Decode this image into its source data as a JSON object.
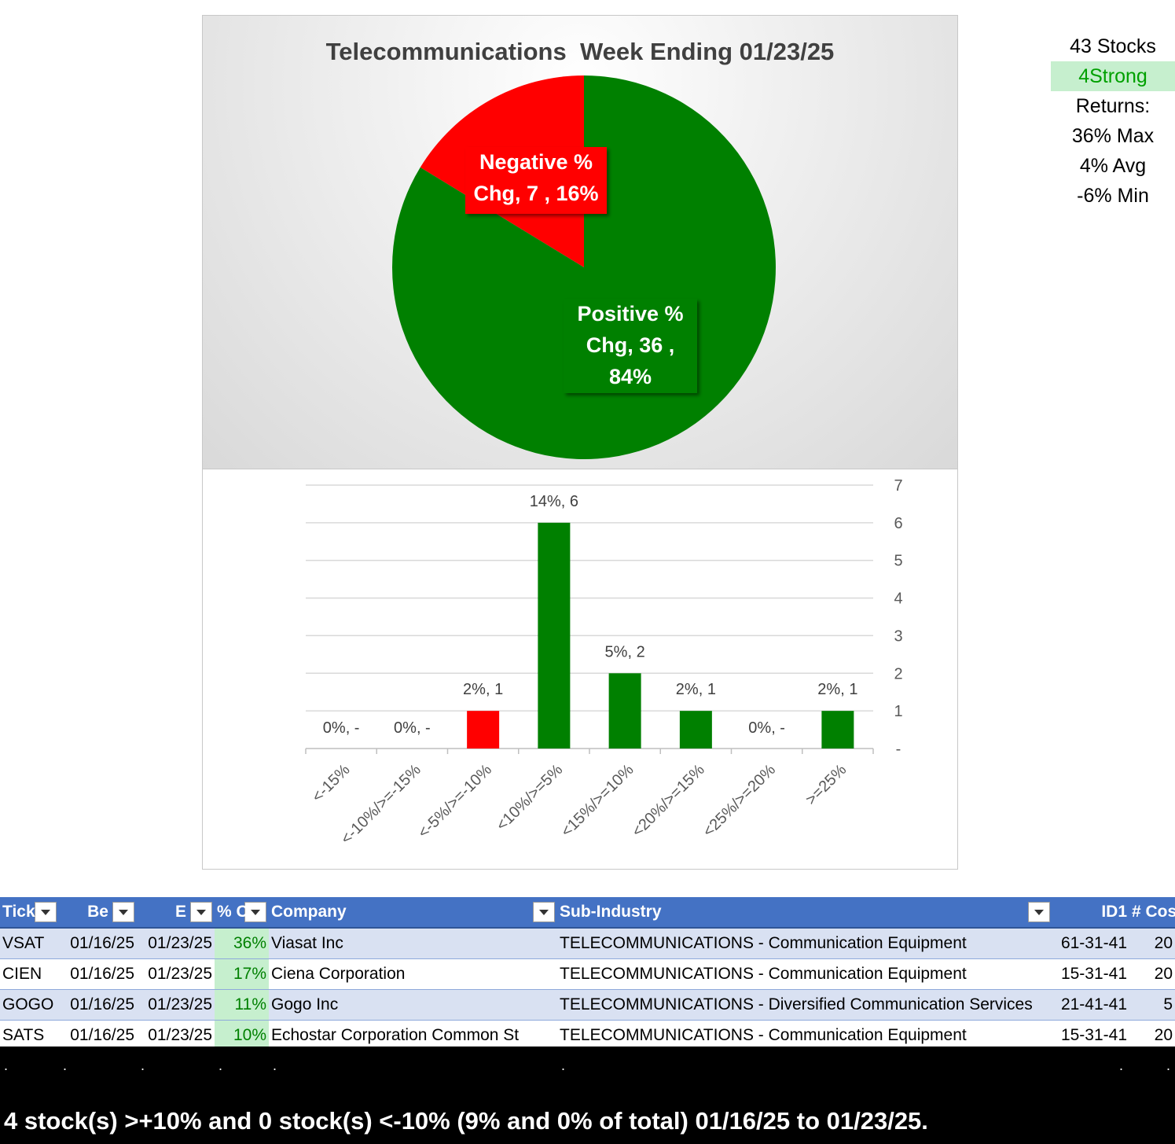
{
  "chart_data": [
    {
      "type": "pie",
      "title": "Telecommunications  Week Ending 01/23/25",
      "slices": [
        {
          "name": "Negative % Chg",
          "value": 7,
          "percent": "16%",
          "color": "#ff0000",
          "label_lines": [
            "Negative %",
            "Chg,  7 , 16%"
          ]
        },
        {
          "name": "Positive % Chg",
          "value": 36,
          "percent": "84%",
          "color": "#008000",
          "label_lines": [
            "Positive %",
            "Chg,  36 ,",
            "84%"
          ]
        }
      ]
    },
    {
      "type": "bar",
      "categories": [
        "<-15%",
        "<-10%/>=-15%",
        "<-5%/>=-10%",
        "<10%/>=5%",
        "<15%/>=10%",
        "<20%/>=15%",
        "<25%/>=20%",
        ">=25%"
      ],
      "values": [
        0,
        0,
        1,
        6,
        2,
        1,
        0,
        1
      ],
      "labels": [
        "0%,  -",
        "0%,  -",
        "2%,  1",
        "14%,  6",
        "5%,  2",
        "2%,  1",
        "0%,  -",
        "2%,  1"
      ],
      "colors": [
        "#ff0000",
        "#ff0000",
        "#ff0000",
        "#008000",
        "#008000",
        "#008000",
        "#008000",
        "#008000"
      ],
      "yticks": [
        "-",
        "1",
        "2",
        "3",
        "4",
        "5",
        "6",
        "7"
      ],
      "ylim": [
        0,
        7
      ],
      "grid": true,
      "yaxis_side": "right"
    }
  ],
  "stats": {
    "stocks": "43 Stocks",
    "strong": "4Strong",
    "returns_label": "Returns:",
    "max": "36% Max",
    "avg": "4% Avg",
    "min": "-6% Min"
  },
  "table": {
    "headers": [
      "Tick",
      "Be",
      "E",
      "% C",
      "Company",
      "Sub-Industry",
      "ID1",
      "# Cos"
    ],
    "rows": [
      [
        "VSAT",
        "01/16/25",
        "01/23/25",
        "36%",
        "Viasat Inc",
        "TELECOMMUNICATIONS - Communication Equipment",
        "61-31-41",
        "20"
      ],
      [
        "CIEN",
        "01/16/25",
        "01/23/25",
        "17%",
        "Ciena Corporation",
        "TELECOMMUNICATIONS - Communication Equipment",
        "15-31-41",
        "20"
      ],
      [
        "GOGO",
        "01/16/25",
        "01/23/25",
        "11%",
        "Gogo Inc",
        "TELECOMMUNICATIONS - Diversified Communication Services",
        "21-41-41",
        "5"
      ],
      [
        "SATS",
        "01/16/25",
        "01/23/25",
        "10%",
        "Echostar Corporation Common St",
        "TELECOMMUNICATIONS - Communication Equipment",
        "15-31-41",
        "20"
      ]
    ]
  },
  "footer": {
    "dot": ".",
    "summary": "4 stock(s) >+10% and 0 stock(s) <-10% (9% and 0% of total) 01/16/25 to 01/23/25."
  }
}
